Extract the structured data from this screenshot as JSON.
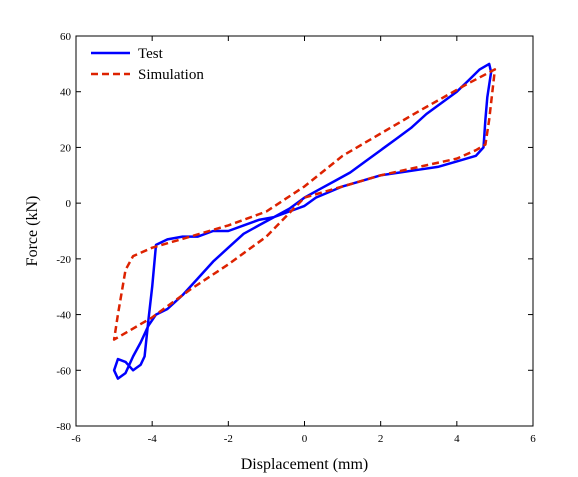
{
  "chart_data": {
    "type": "line",
    "xlabel": "Displacement  (mm)",
    "ylabel": "Force (kN)",
    "xlim": [
      -6,
      6
    ],
    "ylim": [
      -80,
      60
    ],
    "xticks": [
      -6,
      -4,
      -2,
      0,
      2,
      4,
      6
    ],
    "yticks": [
      60,
      40,
      20,
      0,
      -20,
      -40,
      -60,
      -80
    ],
    "grid": false,
    "legend_position": "top-left",
    "series": [
      {
        "name": "Test",
        "color": "#0000ff",
        "style": "solid",
        "x": [
          0.3,
          1.0,
          1.5,
          2.0,
          2.5,
          3.0,
          3.5,
          4.0,
          4.5,
          4.7,
          4.75,
          4.8,
          4.9,
          4.85,
          4.6,
          4.3,
          4.0,
          3.6,
          3.2,
          2.8,
          2.4,
          2.0,
          1.6,
          1.2,
          0.8,
          0.4,
          0.0,
          -0.4,
          -0.8,
          -1.2,
          -1.6,
          -2.0,
          -2.4,
          -2.8,
          -3.2,
          -3.6,
          -3.9,
          -4.0,
          -4.1,
          -4.2,
          -4.3,
          -4.5,
          -4.7,
          -4.9,
          -5.0,
          -4.9,
          -4.7,
          -4.5,
          -4.3,
          -4.1,
          -3.9,
          -3.6,
          -3.2,
          -2.8,
          -2.4,
          -2.0,
          -1.6,
          -1.2,
          -0.8,
          -0.4,
          0.0,
          0.3
        ],
        "y": [
          2,
          6,
          8,
          10,
          11,
          12,
          13,
          15,
          17,
          20,
          30,
          38,
          47,
          50,
          48,
          44,
          40,
          36,
          32,
          27,
          23,
          19,
          15,
          11,
          8,
          5,
          2,
          -2,
          -5,
          -6,
          -8,
          -10,
          -10,
          -12,
          -12,
          -13,
          -15,
          -30,
          -42,
          -55,
          -58,
          -60,
          -57,
          -56,
          -60,
          -63,
          -61,
          -55,
          -50,
          -44,
          -40,
          -38,
          -33,
          -27,
          -21,
          -16,
          -11,
          -8,
          -5,
          -3,
          -1,
          2
        ]
      },
      {
        "name": "Simulation",
        "color": "#dd2200",
        "style": "dashed",
        "x": [
          0,
          2,
          4,
          4.5,
          4.75,
          4.85,
          5.0,
          4.3,
          3.0,
          2.0,
          1.0,
          0,
          -1.0,
          -2.0,
          -3.0,
          -4.0,
          -4.5,
          -4.7,
          -4.9,
          -5.0,
          -4.0,
          -3.0,
          -2.0,
          -1.0,
          0
        ],
        "y": [
          2,
          10,
          16,
          19,
          21,
          30,
          48,
          43,
          33,
          25,
          17,
          6,
          -3,
          -8,
          -12,
          -16,
          -19,
          -24,
          -40,
          -49,
          -41,
          -31,
          -22,
          -12,
          2
        ]
      }
    ]
  }
}
